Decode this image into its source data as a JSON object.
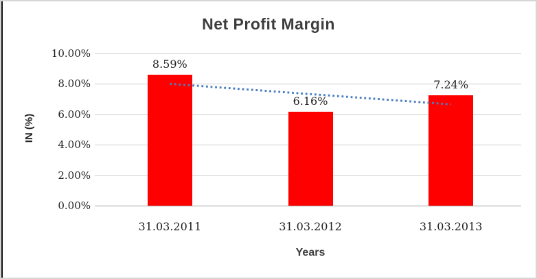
{
  "window": {
    "background_color": "#ffffff",
    "border_color": "#d6d6d6",
    "left_edge_color": "#111111"
  },
  "chart_data": {
    "type": "bar",
    "title": "Net Profit Margin",
    "xlabel": "Years",
    "ylabel": "IN (%)",
    "categories": [
      "31.03.2011",
      "31.03.2012",
      "31.03.2013"
    ],
    "series": [
      {
        "name": "Net Profit Margin",
        "values": [
          8.59,
          6.16,
          7.24
        ],
        "value_labels": [
          "8.59%",
          "6.16%",
          "7.24%"
        ],
        "color": "#ff0000"
      }
    ],
    "ylim": [
      0,
      10
    ],
    "yticks": [
      {
        "value": 10,
        "label": "10.00%"
      },
      {
        "value": 8,
        "label": "8.00%"
      },
      {
        "value": 6,
        "label": "6.00%"
      },
      {
        "value": 4,
        "label": "4.00%"
      },
      {
        "value": 2,
        "label": "2.00%"
      },
      {
        "value": 0,
        "label": "0.00%"
      }
    ],
    "grid": true,
    "legend": false,
    "gridline_color": "#cdcdcd",
    "zero_axis_color": "#a0a0a0",
    "trendline": {
      "type": "linear",
      "style": "dotted",
      "color": "#4a7ebf"
    }
  }
}
